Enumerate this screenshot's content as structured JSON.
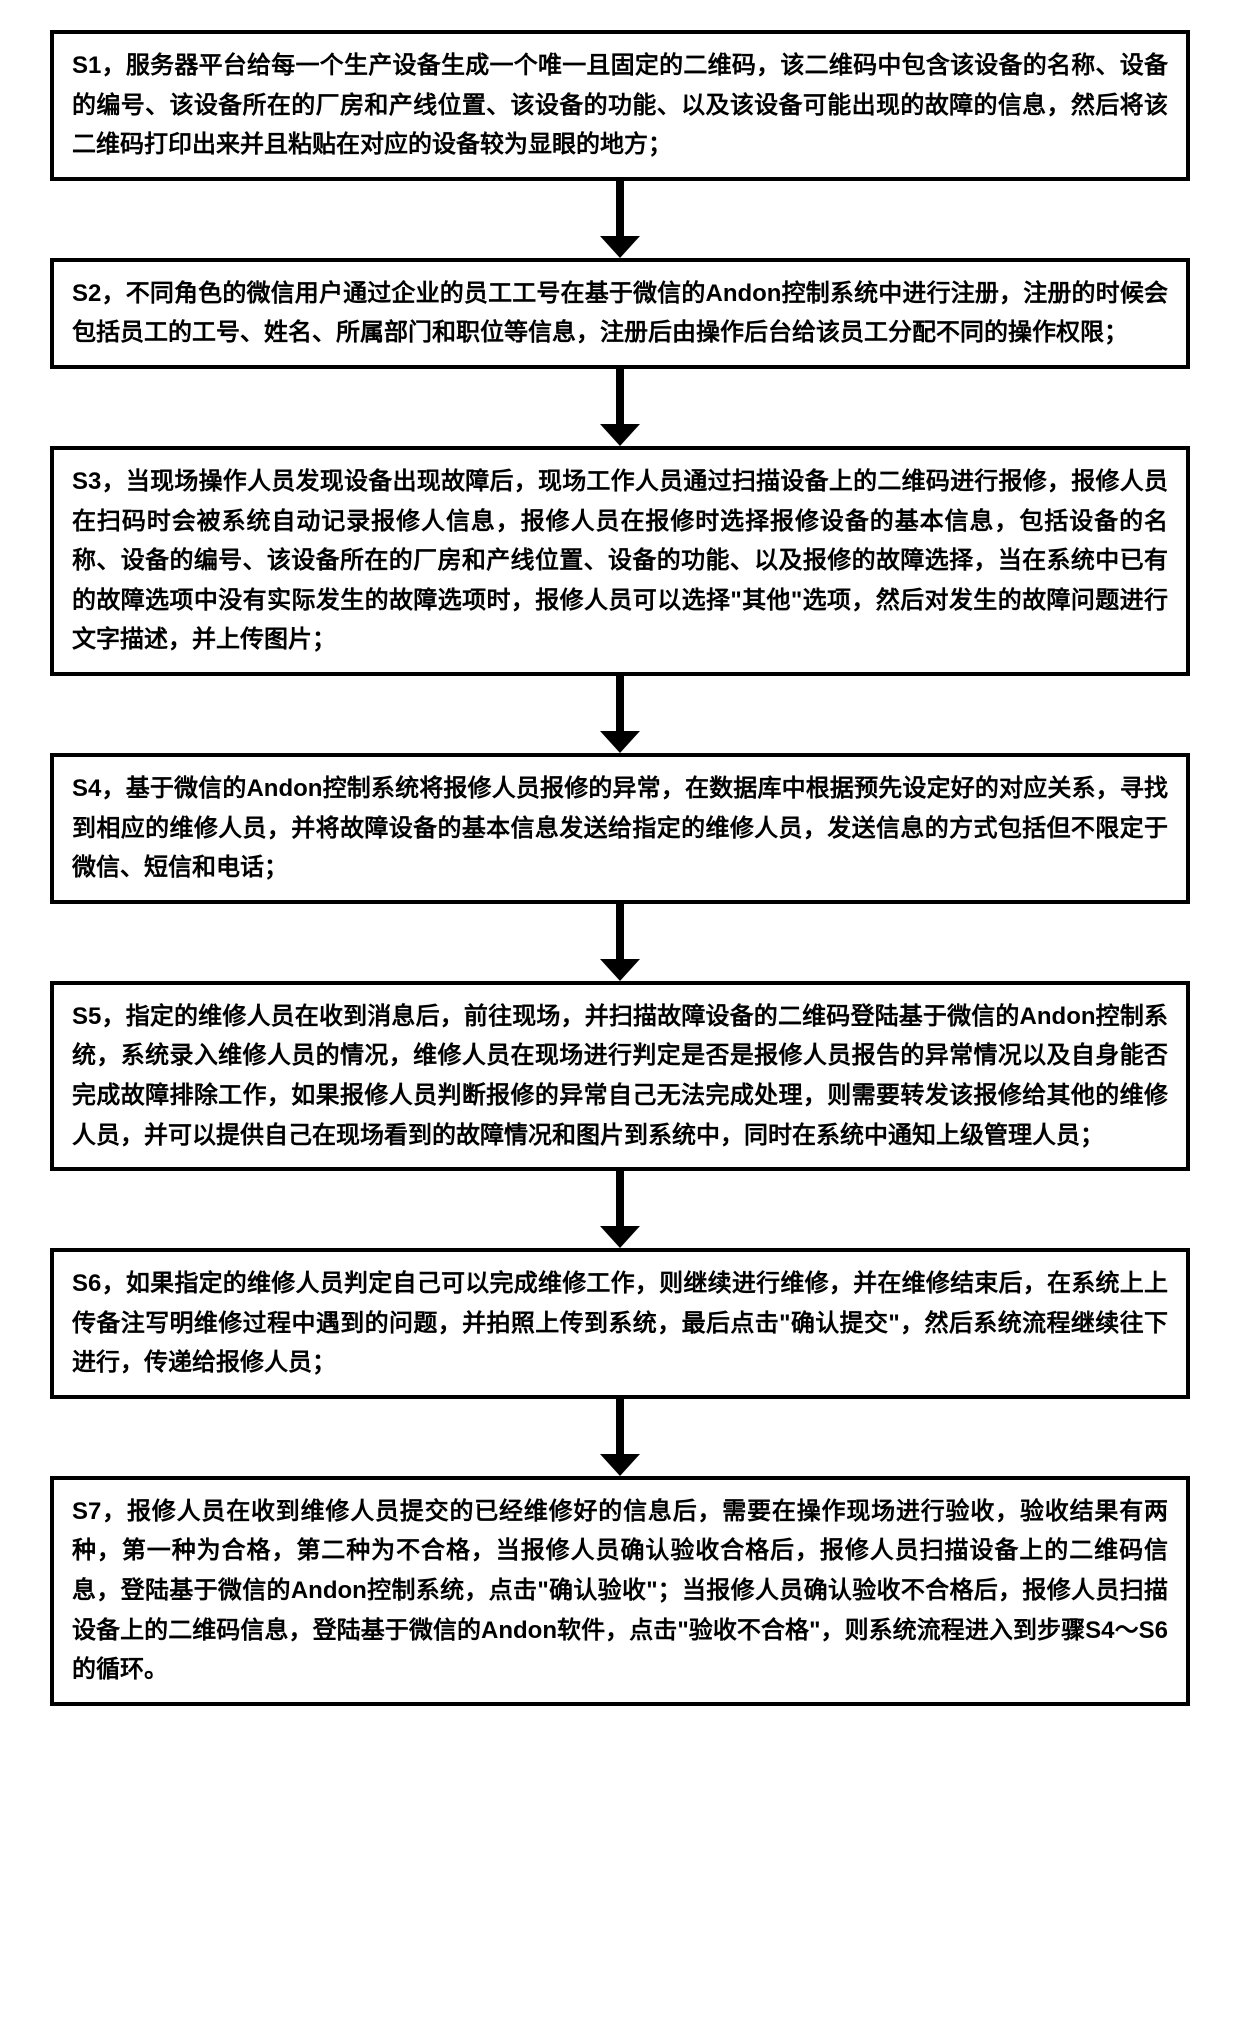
{
  "flowchart": {
    "type": "flowchart",
    "direction": "vertical",
    "box_border_color": "#000000",
    "box_border_width": 4,
    "box_background": "#ffffff",
    "arrow_color": "#000000",
    "font_size": 24,
    "font_weight": "bold",
    "text_color": "#000000",
    "steps": [
      {
        "id": "S1",
        "label": "S1，",
        "text": "服务器平台给每一个生产设备生成一个唯一且固定的二维码，该二维码中包含该设备的名称、设备的编号、该设备所在的厂房和产线位置、该设备的功能、以及该设备可能出现的故障的信息，然后将该二维码打印出来并且粘贴在对应的设备较为显眼的地方；"
      },
      {
        "id": "S2",
        "label": "S2，",
        "text": "不同角色的微信用户通过企业的员工工号在基于微信的Andon控制系统中进行注册，注册的时候会包括员工的工号、姓名、所属部门和职位等信息，注册后由操作后台给该员工分配不同的操作权限；"
      },
      {
        "id": "S3",
        "label": "S3，",
        "text": "当现场操作人员发现设备出现故障后，现场工作人员通过扫描设备上的二维码进行报修，报修人员在扫码时会被系统自动记录报修人信息，报修人员在报修时选择报修设备的基本信息，包括设备的名称、设备的编号、该设备所在的厂房和产线位置、设备的功能、以及报修的故障选择，当在系统中已有的故障选项中没有实际发生的故障选项时，报修人员可以选择\"其他\"选项，然后对发生的故障问题进行文字描述，并上传图片；"
      },
      {
        "id": "S4",
        "label": "S4，",
        "text": "基于微信的Andon控制系统将报修人员报修的异常，在数据库中根据预先设定好的对应关系，寻找到相应的维修人员，并将故障设备的基本信息发送给指定的维修人员，发送信息的方式包括但不限定于微信、短信和电话；"
      },
      {
        "id": "S5",
        "label": "S5，",
        "text": "指定的维修人员在收到消息后，前往现场，并扫描故障设备的二维码登陆基于微信的Andon控制系统，系统录入维修人员的情况，维修人员在现场进行判定是否是报修人员报告的异常情况以及自身能否完成故障排除工作，如果报修人员判断报修的异常自己无法完成处理，则需要转发该报修给其他的维修人员，并可以提供自己在现场看到的故障情况和图片到系统中，同时在系统中通知上级管理人员；"
      },
      {
        "id": "S6",
        "label": "S6，",
        "text": "如果指定的维修人员判定自己可以完成维修工作，则继续进行维修，并在维修结束后，在系统上上传备注写明维修过程中遇到的问题，并拍照上传到系统，最后点击\"确认提交\"，然后系统流程继续往下进行，传递给报修人员；"
      },
      {
        "id": "S7",
        "label": "S7，",
        "text": "报修人员在收到维修人员提交的已经维修好的信息后，需要在操作现场进行验收，验收结果有两种，第一种为合格，第二种为不合格，当报修人员确认验收合格后，报修人员扫描设备上的二维码信息，登陆基于微信的Andon控制系统，点击\"确认验收\"；当报修人员确认验收不合格后，报修人员扫描设备上的二维码信息，登陆基于微信的Andon软件，点击\"验收不合格\"，则系统流程进入到步骤S4～S6的循环。"
      }
    ]
  }
}
